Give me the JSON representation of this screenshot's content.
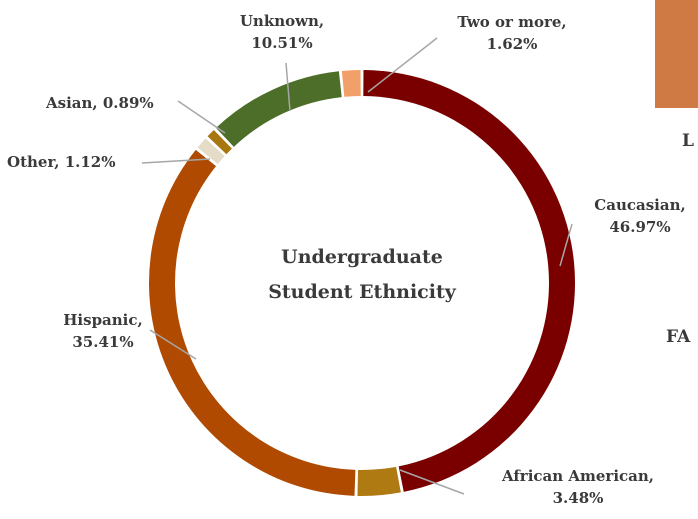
{
  "chart_data": {
    "type": "pie",
    "title": "Undergraduate Student Ethnicity",
    "title_lines": [
      "Undergraduate",
      "Student Ethnicity"
    ],
    "legend": "none",
    "categories": [
      "Caucasian",
      "African American",
      "Hispanic",
      "Other",
      "Asian",
      "Unknown",
      "Two or more"
    ],
    "values": [
      46.97,
      3.48,
      35.41,
      1.12,
      0.89,
      10.51,
      1.62
    ],
    "colors": [
      "#7a0000",
      "#b07a12",
      "#b04a00",
      "#e5dcc8",
      "#a8760e",
      "#4c6e29",
      "#f2a06a"
    ],
    "labels": [
      {
        "line1": "Caucasian,",
        "line2": "46.97%"
      },
      {
        "line1": "African American,",
        "line2": "3.48%"
      },
      {
        "line1": "Hispanic,",
        "line2": "35.41%"
      },
      {
        "line1": "Other, 1.12%",
        "line2": ""
      },
      {
        "line1": "Asian, 0.89%",
        "line2": ""
      },
      {
        "line1": "Unknown,",
        "line2": "10.51%"
      },
      {
        "line1": "Two or more,",
        "line2": "1.62%"
      }
    ]
  },
  "edge": {
    "thumbnail_color": "#cf7a45",
    "letter_l": "L",
    "fa_text": "FA"
  }
}
